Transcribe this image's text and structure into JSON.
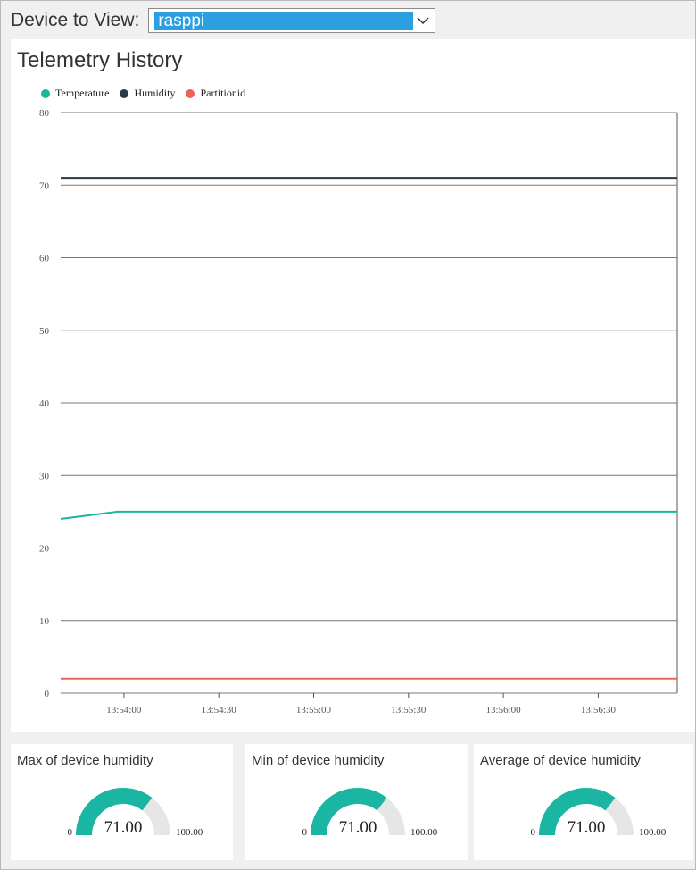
{
  "device_picker": {
    "label": "Device to View:",
    "selected": "rasppi"
  },
  "chart": {
    "title": "Telemetry History"
  },
  "chart_data": {
    "type": "line",
    "title": "Telemetry History",
    "legend_position": "top-left",
    "grid": true,
    "ylim": [
      0,
      80
    ],
    "y_ticks": [
      "0",
      "10",
      "20",
      "30",
      "40",
      "50",
      "60",
      "70",
      "80"
    ],
    "x_ticks": [
      "13:54:00",
      "13:54:30",
      "13:55:00",
      "13:55:30",
      "13:56:00",
      "13:56:30"
    ],
    "series": [
      {
        "name": "Temperature",
        "color": "#1ab5a3",
        "points": [
          [
            "13:53:40",
            24
          ],
          [
            "13:53:58",
            25
          ],
          [
            "13:56:55",
            25
          ]
        ]
      },
      {
        "name": "Humidity",
        "color": "#2e3a43",
        "points": [
          [
            "13:53:40",
            71
          ],
          [
            "13:56:55",
            71
          ]
        ]
      },
      {
        "name": "Partitionid",
        "color": "#f0605c",
        "points": [
          [
            "13:53:40",
            2
          ],
          [
            "13:56:55",
            2
          ]
        ]
      }
    ]
  },
  "gauges": [
    {
      "title": "Max of device humidity",
      "value": 71,
      "value_label": "71.00",
      "min_label": "0",
      "max_label": "100.00",
      "min": 0,
      "max": 100
    },
    {
      "title": "Min of device humidity",
      "value": 71,
      "value_label": "71.00",
      "min_label": "0",
      "max_label": "100.00",
      "min": 0,
      "max": 100
    },
    {
      "title": "Average of device humidity",
      "value": 71,
      "value_label": "71.00",
      "min_label": "0",
      "max_label": "100.00",
      "min": 0,
      "max": 100
    }
  ],
  "colors": {
    "gauge_fill": "#1ab5a3",
    "gauge_track": "#e6e6e6",
    "selection": "#2b9fe0"
  },
  "icons": {
    "dropdown": "chevron-down-icon"
  }
}
